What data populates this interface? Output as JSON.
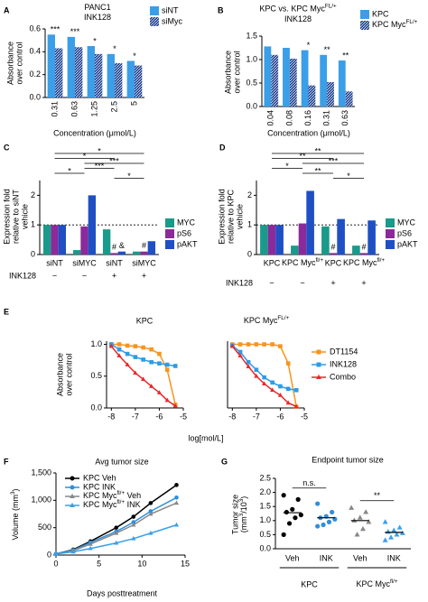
{
  "chart_data": [
    {
      "panel": "A",
      "type": "bar",
      "title": [
        "PANC1",
        "INK128"
      ],
      "y_label": [
        "Absorbance",
        "over control"
      ],
      "x_label": [
        "Concentration (μmol/L)"
      ],
      "categories": [
        "0.31",
        "0.63",
        "1.25",
        "2.5",
        "5"
      ],
      "rotate_labels": true,
      "series": [
        {
          "name": "siNT",
          "color": "#3a9ee8",
          "values": [
            0.55,
            0.53,
            0.45,
            0.38,
            0.32
          ]
        },
        {
          "name": "siMyc",
          "color": "#1d3f8f",
          "hatch": true,
          "values": [
            0.43,
            0.44,
            0.38,
            0.3,
            0.28
          ]
        }
      ],
      "significance": [
        "***",
        "***",
        "*",
        "*",
        "*"
      ],
      "ylim": [
        0,
        0.6
      ],
      "yticks": [
        {
          "value": 0,
          "label": "0.0"
        },
        0.2,
        0.4,
        0.6
      ]
    },
    {
      "panel": "B",
      "type": "bar",
      "title": [
        [
          {
            "text": "KPC vs. KPC Myc"
          },
          {
            "text": "FL/+",
            "sup": true
          }
        ],
        "INK128"
      ],
      "y_label": [
        "Absorbance",
        "over control"
      ],
      "x_label": [
        "Concentration (μmol/L)"
      ],
      "categories": [
        "0.04",
        "0.08",
        "0.16",
        "0.31",
        "0.63"
      ],
      "rotate_labels": true,
      "series": [
        {
          "name": "KPC",
          "color": "#3a9ee8",
          "values": [
            1.28,
            1.25,
            1.2,
            1.1,
            0.98
          ]
        },
        {
          "name": [
            {
              "text": "KPC Myc"
            },
            {
              "text": "FL/+",
              "sup": true
            }
          ],
          "color": "#1d3f8f",
          "hatch": true,
          "values": [
            1.1,
            1.02,
            0.45,
            0.52,
            0.32
          ]
        }
      ],
      "significance": [
        null,
        null,
        "*",
        "**",
        "**"
      ],
      "ylim": [
        0,
        1.5
      ],
      "yticks": [
        {
          "value": 0,
          "label": "0.0"
        },
        0.5,
        {
          "value": 1,
          "label": "1.0"
        },
        1.5
      ]
    },
    {
      "panel": "C",
      "type": "bar",
      "y_label": [
        "Expression fold",
        "relative to siNT",
        "vehicle"
      ],
      "categories": [
        "siNT",
        "siMYC",
        "siNT",
        "siMYC"
      ],
      "row_label": "INK128",
      "row_values": [
        "−",
        "−",
        "+",
        "+"
      ],
      "series": [
        {
          "name": "MYC",
          "color": "#1a9a8a",
          "values": [
            1.0,
            0.15,
            0.85,
            0.1
          ]
        },
        {
          "name": "pS6",
          "color": "#8b2a9b",
          "values": [
            1.0,
            0.95,
            0.05,
            0.1
          ],
          "markers": [
            null,
            null,
            "#",
            "#"
          ]
        },
        {
          "name": "pAKT",
          "color": "#1f4fc4",
          "values": [
            1.0,
            2.0,
            0.1,
            0.45
          ],
          "markers": [
            null,
            null,
            "&",
            null
          ]
        }
      ],
      "reference_line": 1,
      "comparisons": [
        {
          "from": 0,
          "to": 3,
          "label": "*"
        },
        {
          "from": 0,
          "to": 2,
          "label": "*"
        },
        {
          "from": 1,
          "to": 3,
          "label": "***"
        },
        {
          "from": 1,
          "to": 2,
          "label": "***"
        },
        {
          "from": 0,
          "to": 1,
          "label": "*"
        },
        {
          "from": 2,
          "to": 3,
          "label": "*"
        }
      ],
      "ylim": [
        0,
        2.5
      ],
      "yticks": [
        0,
        1,
        2
      ]
    },
    {
      "panel": "D",
      "type": "bar",
      "y_label": [
        "Expression fold",
        "relative to KPC",
        "vehicle"
      ],
      "categories": [
        "KPC",
        [
          {
            "text": "KPC Myc"
          },
          {
            "text": "fl/+",
            "sup": true
          }
        ],
        "KPC",
        [
          {
            "text": "KPC Myc"
          },
          {
            "text": "fl/+",
            "sup": true
          }
        ]
      ],
      "row_label": "INK128",
      "row_values": [
        "−",
        "−",
        "+",
        "+"
      ],
      "series": [
        {
          "name": "MYC",
          "color": "#1a9a8a",
          "values": [
            1.0,
            0.3,
            0.95,
            0.3
          ]
        },
        {
          "name": "pS6",
          "color": "#8b2a9b",
          "values": [
            1.0,
            1.05,
            0.05,
            0.05
          ],
          "markers": [
            null,
            null,
            "#",
            "#"
          ]
        },
        {
          "name": "pAKT",
          "color": "#1f4fc4",
          "values": [
            1.0,
            2.15,
            1.2,
            1.15
          ]
        }
      ],
      "reference_line": 1,
      "comparisons": [
        {
          "from": 0,
          "to": 3,
          "label": "**"
        },
        {
          "from": 0,
          "to": 2,
          "label": "**"
        },
        {
          "from": 1,
          "to": 3,
          "label": "***"
        },
        {
          "from": 0,
          "to": 1,
          "label": "*"
        },
        {
          "from": 1,
          "to": 2,
          "label": "**"
        },
        {
          "from": 2,
          "to": 3,
          "label": "*"
        }
      ],
      "ylim": [
        0,
        2.5
      ],
      "yticks": [
        0,
        1,
        2
      ]
    },
    {
      "panel": "E",
      "type": "line",
      "title": [
        "KPC"
      ],
      "y_label": [
        "Absorbance",
        "over control"
      ],
      "x_label": [
        "log[mol/L]"
      ],
      "x": [
        -8,
        -7.67,
        -7.33,
        -7,
        -6.67,
        -6.33,
        -6,
        -5.67,
        -5.33
      ],
      "series": [
        {
          "name": "DT1154",
          "color": "#f7941d",
          "marker": "square",
          "values": [
            1.0,
            1.0,
            0.98,
            0.97,
            0.95,
            0.92,
            0.85,
            0.6,
            0.05
          ]
        },
        {
          "name": "INK128",
          "color": "#2e9be6",
          "marker": "square",
          "values": [
            1.0,
            0.92,
            0.85,
            0.8,
            0.76,
            0.72,
            0.7,
            0.68,
            0.66
          ]
        },
        {
          "name": "Combo",
          "color": "#e8282b",
          "marker": "triangle",
          "values": [
            0.97,
            0.82,
            0.68,
            0.55,
            0.45,
            0.34,
            0.24,
            0.12,
            0.03
          ]
        }
      ],
      "xlim": [
        -8.2,
        -5
      ],
      "xticks": [
        -8,
        -7,
        -6,
        -5
      ],
      "ylim": [
        0,
        1.05
      ],
      "yticks": [
        {
          "value": 0,
          "label": "0.0"
        },
        0.5,
        {
          "value": 1,
          "label": "1.0"
        }
      ]
    },
    {
      "type": "line",
      "title": [
        [
          {
            "text": "KPC Myc"
          },
          {
            "text": "FL/+",
            "sup": true
          }
        ]
      ],
      "legend": true,
      "x": [
        -8,
        -7.67,
        -7.33,
        -7,
        -6.67,
        -6.33,
        -6,
        -5.67,
        -5.33
      ],
      "series": [
        {
          "name": "DT1154",
          "color": "#f7941d",
          "marker": "square",
          "values": [
            1.0,
            1.0,
            1.0,
            1.0,
            1.0,
            1.0,
            0.97,
            0.7,
            0.02
          ]
        },
        {
          "name": "INK128",
          "color": "#2e9be6",
          "marker": "square",
          "values": [
            0.98,
            0.88,
            0.72,
            0.6,
            0.48,
            0.4,
            0.34,
            0.3,
            0.28
          ]
        },
        {
          "name": "Combo",
          "color": "#e8282b",
          "marker": "triangle",
          "values": [
            0.97,
            0.82,
            0.65,
            0.5,
            0.38,
            0.28,
            0.2,
            0.08,
            0.02
          ]
        }
      ],
      "xlim": [
        -8.2,
        -5
      ],
      "xticks": [
        -8,
        -7,
        -6,
        -5
      ],
      "ylim": [
        0,
        1.05
      ]
    },
    {
      "panel": "F",
      "type": "line",
      "title": [
        "Avg tumor size"
      ],
      "legend": true,
      "y_label": [
        [
          {
            "text": "Volume (mm"
          },
          {
            "text": "3",
            "sup": true
          },
          {
            "text": ")"
          }
        ]
      ],
      "x_label": [
        "Days posttreatment"
      ],
      "x": [
        0,
        2,
        4,
        7,
        9,
        11,
        14
      ],
      "series": [
        {
          "name": "KPC Veh",
          "color": "#000000",
          "marker": "circle",
          "values": [
            20,
            100,
            250,
            500,
            700,
            950,
            1280
          ]
        },
        {
          "name": "KPC INK",
          "color": "#2e8fdc",
          "marker": "circle",
          "values": [
            20,
            90,
            230,
            430,
            600,
            800,
            1050
          ]
        },
        {
          "name": [
            {
              "text": "KPC Myc"
            },
            {
              "text": "fl/+",
              "sup": true
            },
            {
              "text": " Veh"
            }
          ],
          "color": "#888888",
          "marker": "triangle",
          "values": [
            20,
            80,
            200,
            400,
            550,
            750,
            950
          ]
        },
        {
          "name": [
            {
              "text": "KPC Myc"
            },
            {
              "text": "fl/+",
              "sup": true
            },
            {
              "text": " INK"
            }
          ],
          "color": "#3aa0ea",
          "marker": "triangle",
          "values": [
            20,
            60,
            120,
            220,
            300,
            400,
            550
          ]
        }
      ],
      "xlim": [
        0,
        15
      ],
      "xticks": [
        0,
        5,
        10,
        15
      ],
      "ylim": [
        0,
        1500
      ],
      "yticks": [
        0,
        500,
        {
          "value": 1000,
          "label": "1,000"
        },
        {
          "value": 1500,
          "label": "1,500"
        }
      ]
    },
    {
      "panel": "G",
      "type": "dot",
      "title": [
        "Endpoint tumor size"
      ],
      "y_label": [
        "Tumor size",
        [
          {
            "text": "(mm"
          },
          {
            "text": "3",
            "sup": true
          },
          {
            "text": "/10"
          },
          {
            "text": "3",
            "sup": true
          },
          {
            "text": ")"
          }
        ]
      ],
      "categories": [
        "Veh",
        "INK",
        "Veh",
        "INK"
      ],
      "groups": [
        "KPC",
        [
          {
            "text": "KPC Myc"
          },
          {
            "text": "fl/+",
            "sup": true
          }
        ]
      ],
      "colors": [
        "#000000",
        "#2e8fdc",
        "#888888",
        "#3aa0ea"
      ],
      "markers": [
        "circle",
        "circle",
        "triangle",
        "triangle"
      ],
      "points": [
        [
          1.9,
          1.75,
          1.4,
          1.3,
          1.2,
          1.1,
          0.9,
          0.5
        ],
        [
          1.6,
          1.3,
          1.15,
          1.1,
          1.05,
          0.95,
          0.85,
          0.8
        ],
        [
          1.45,
          1.3,
          1.1,
          1.0,
          0.95,
          0.7,
          0.5
        ],
        [
          0.95,
          0.75,
          0.65,
          0.6,
          0.55,
          0.5,
          0.4,
          0.3
        ]
      ],
      "means": [
        1.28,
        1.1,
        1.0,
        0.58
      ],
      "comparisons": [
        {
          "from": 0,
          "to": 1,
          "label": "n.s."
        },
        {
          "from": 2,
          "to": 3,
          "label": "**"
        }
      ],
      "ylim": [
        0,
        2.5
      ],
      "yticks": [
        {
          "value": 0,
          "label": "0.0"
        },
        0.5,
        {
          "value": 1,
          "label": "1.0"
        },
        1.5,
        {
          "value": 2,
          "label": "2.0"
        },
        2.5
      ]
    }
  ]
}
